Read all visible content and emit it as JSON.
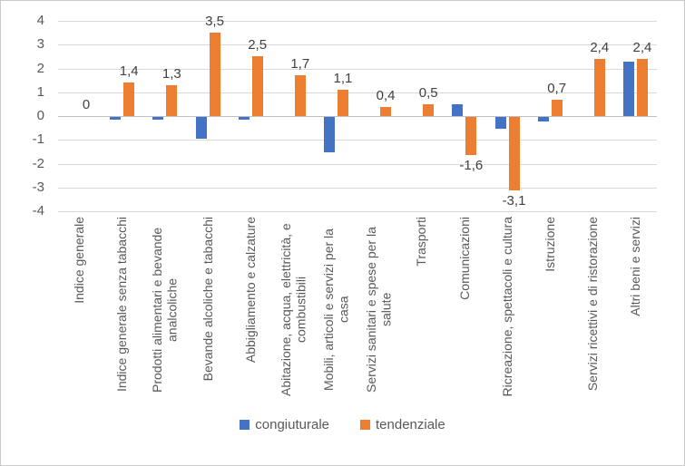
{
  "chart_data": {
    "type": "bar",
    "title": "",
    "categories": [
      "Indice generale",
      "Indice generale senza tabacchi",
      "Prodotti alimentari e bevande analcoliche",
      "Bevande alcoliche e tabacchi",
      "Abbigliamento e calzature",
      "Abitazione, acqua, elettricità, e combustibili",
      "Mobili, articoli e servizi per la casa",
      "Servizi sanitari e spese per la salute",
      "Trasporti",
      "Comunicazioni",
      "Ricreazione, spettacoli e cultura",
      "Istruzione",
      "Servizi ricettivi e di ristorazione",
      "Altri beni e servizi"
    ],
    "series": [
      {
        "name": "congiuturale",
        "color": "#4472C4",
        "values": [
          0,
          -0.1,
          -0.1,
          -0.9,
          -0.1,
          0,
          -1.5,
          0,
          0,
          0.5,
          -0.5,
          -0.2,
          0,
          2.3
        ]
      },
      {
        "name": "tendenziale",
        "color": "#ED7D31",
        "values": [
          0,
          1.4,
          1.3,
          3.5,
          2.5,
          1.7,
          1.1,
          0.4,
          0.5,
          -1.6,
          -3.1,
          0.7,
          2.4,
          2.4
        ]
      }
    ],
    "data_labels": [
      "0",
      "1,4",
      "1,3",
      "3,5",
      "2,5",
      "1,7",
      "1,1",
      "0,4",
      "0,5",
      "-1,6",
      "-3,1",
      "0,7",
      "2,4",
      "2,4"
    ],
    "data_labels_series": "tendenziale",
    "ylim": [
      -4,
      4
    ],
    "ytick_step": 1,
    "yticks": [
      "4",
      "3",
      "2",
      "1",
      "0",
      "-1",
      "-2",
      "-3",
      "-4"
    ],
    "grid": true,
    "legend_position": "bottom"
  },
  "legend": {
    "items": [
      {
        "label": "congiuturale",
        "color": "#4472C4"
      },
      {
        "label": "tendenziale",
        "color": "#ED7D31"
      }
    ]
  }
}
